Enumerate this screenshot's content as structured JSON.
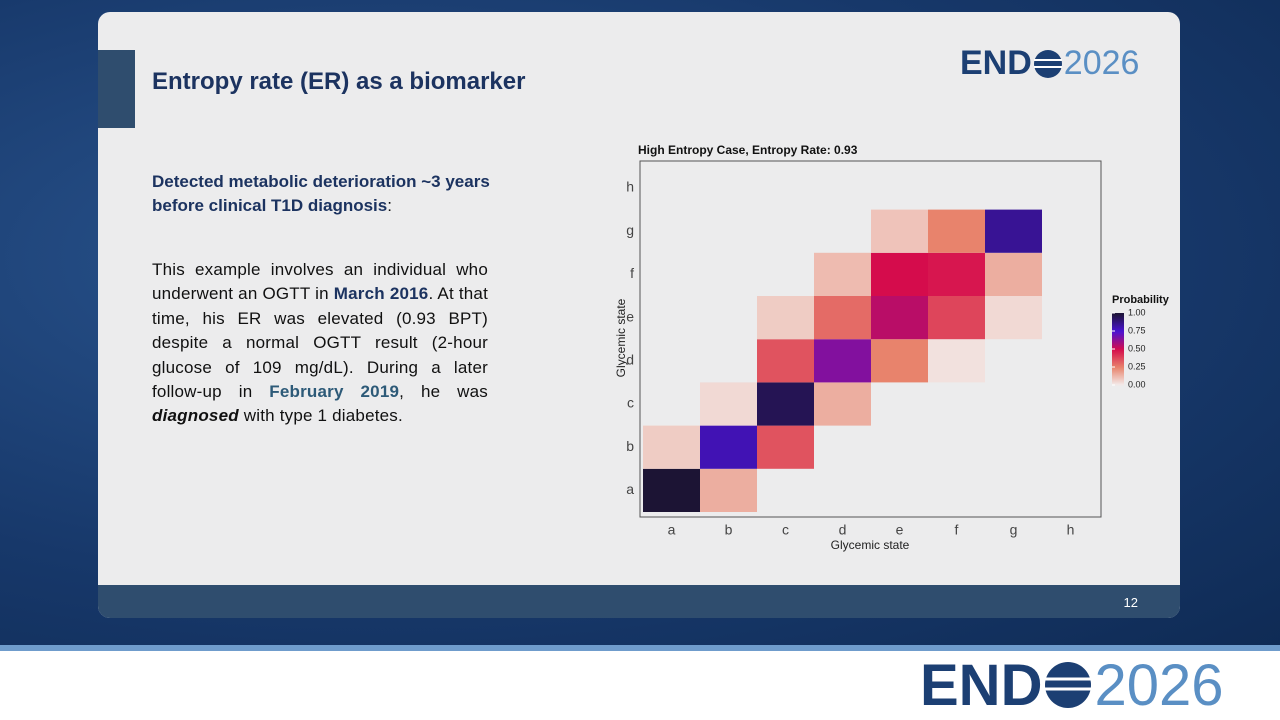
{
  "slide": {
    "title": "Entropy rate (ER) as a biomarker",
    "heading": [
      "Detected metabolic deterioration ~3 years before clinical T1D diagnosis",
      ":"
    ],
    "paragraph": [
      "This example involves an individual who underwent an OGTT in ",
      "March 2016",
      ". At that time, his ER was elevated (0.93 BPT) despite a normal OGTT result (2-hour glucose of 109 mg/dL). During a later follow-up in ",
      "February 2019",
      ", he was ",
      "diagnosed",
      " with type 1 diabetes."
    ],
    "page_number": "12",
    "logo": [
      "END",
      "2026"
    ]
  },
  "chart_data": {
    "type": "heatmap",
    "title": "High Entropy Case, Entropy Rate: 0.93",
    "x_label": "Glycemic state",
    "y_label": "Glycemic state",
    "x_categories": [
      "a",
      "b",
      "c",
      "d",
      "e",
      "f",
      "g",
      "h"
    ],
    "y_categories": [
      "a",
      "b",
      "c",
      "d",
      "e",
      "f",
      "g",
      "h"
    ],
    "values": [
      [
        1.0,
        0.15,
        null,
        null,
        null,
        null,
        null,
        null
      ],
      [
        0.08,
        0.8,
        0.35,
        null,
        null,
        null,
        null,
        null
      ],
      [
        null,
        0.05,
        0.95,
        0.15,
        null,
        null,
        null,
        null
      ],
      [
        null,
        null,
        0.35,
        0.65,
        0.25,
        0.03,
        null,
        null
      ],
      [
        null,
        null,
        0.08,
        0.3,
        0.55,
        0.38,
        0.05,
        null
      ],
      [
        null,
        null,
        null,
        0.12,
        0.5,
        0.48,
        0.15,
        null
      ],
      [
        null,
        null,
        null,
        null,
        0.1,
        0.25,
        0.85,
        null
      ],
      [
        null,
        null,
        null,
        null,
        null,
        null,
        null,
        null
      ]
    ],
    "legend_title": "Probability",
    "zlim": [
      0,
      1
    ],
    "zticks": [
      {
        "value": 0,
        "label": "0.00"
      },
      {
        "value": 0.25,
        "label": "0.25"
      },
      {
        "value": 0.5,
        "label": "0.50"
      },
      {
        "value": 0.75,
        "label": "0.75"
      },
      {
        "value": 1,
        "label": "1.00"
      }
    ],
    "colorscale": [
      [
        0,
        "#f3eeee"
      ],
      [
        0.25,
        "#e8836c"
      ],
      [
        0.5,
        "#d50c4c"
      ],
      [
        0.75,
        "#4a12d4"
      ],
      [
        1,
        "#1c1434"
      ]
    ]
  }
}
